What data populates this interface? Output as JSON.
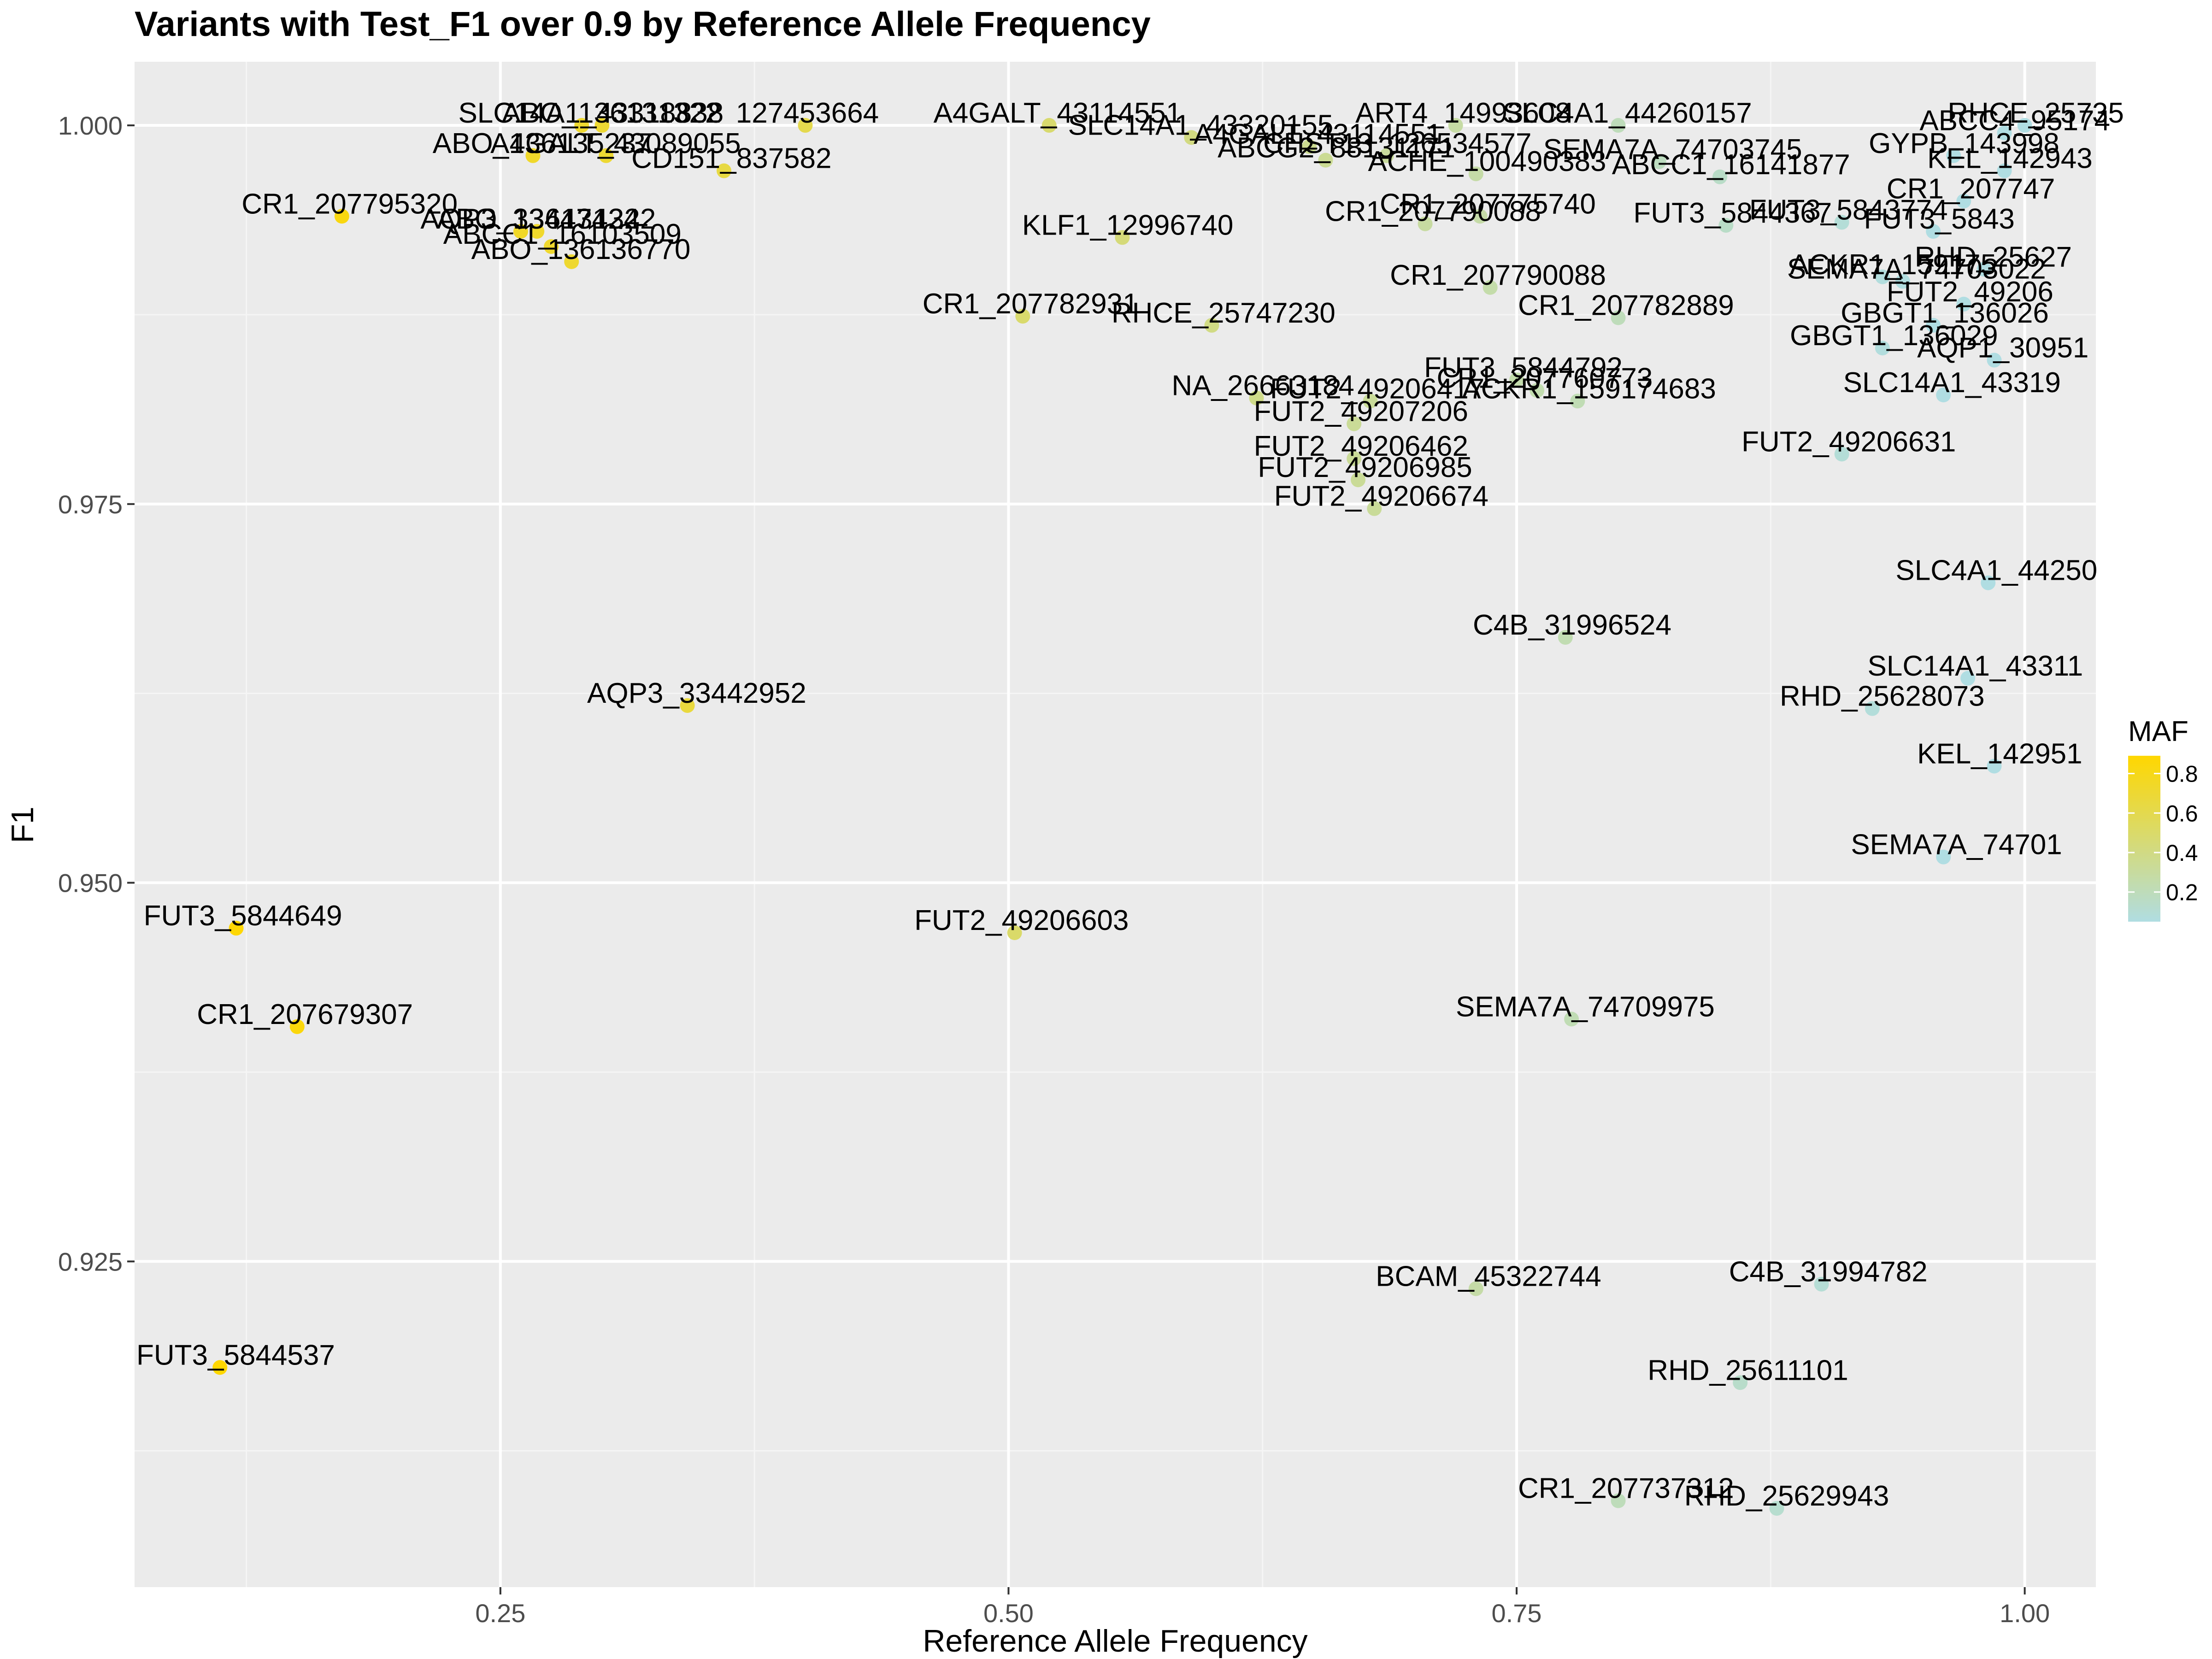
{
  "chart_data": {
    "type": "scatter",
    "title": "Variants with Test_F1 over 0.9 by Reference Allele Frequency",
    "xlabel": "Reference Allele Frequency",
    "ylabel": "F1",
    "xlim": [
      0.07,
      1.035
    ],
    "ylim": [
      0.9035,
      1.0042
    ],
    "x_ticks": [
      {
        "value": 0.25,
        "label": "0.25"
      },
      {
        "value": 0.5,
        "label": "0.50"
      },
      {
        "value": 0.75,
        "label": "0.75"
      },
      {
        "value": 1.0,
        "label": "1.00"
      }
    ],
    "y_ticks": [
      {
        "value": 0.925,
        "label": "0.925"
      },
      {
        "value": 0.95,
        "label": "0.950"
      },
      {
        "value": 0.975,
        "label": "0.975"
      },
      {
        "value": 1.0,
        "label": "1.000"
      }
    ],
    "grid": true,
    "legend": {
      "title": "MAF",
      "position": "right",
      "ticks": [
        {
          "value": 0.2,
          "label": "0.2"
        },
        {
          "value": 0.4,
          "label": "0.4"
        },
        {
          "value": 0.6,
          "label": "0.6"
        },
        {
          "value": 0.8,
          "label": "0.8"
        }
      ],
      "range": [
        0.05,
        0.89
      ],
      "low_color": "#b0dde2",
      "high_color": "#ffd700"
    },
    "points": [
      {
        "label": "SLC14A1_43318838",
        "x": 0.29,
        "y": 1.0,
        "maf": 0.71
      },
      {
        "label": "ABO_136131322",
        "x": 0.3,
        "y": 1.0,
        "maf": 0.7
      },
      {
        "label": "127453664",
        "x": 0.4,
        "y": 1.0,
        "maf": 0.6
      },
      {
        "label": "A4GALT_43114551",
        "x": 0.52,
        "y": 1.0,
        "maf": 0.48
      },
      {
        "label": "ABO_136135237",
        "x": 0.266,
        "y": 0.998,
        "maf": 0.73
      },
      {
        "label": "A4GALT_43089055",
        "x": 0.302,
        "y": 0.998,
        "maf": 0.7
      },
      {
        "label": "CD151_837582",
        "x": 0.36,
        "y": 0.997,
        "maf": 0.64
      },
      {
        "label": "CR1_207795320",
        "x": 0.172,
        "y": 0.994,
        "maf": 0.83
      },
      {
        "label": "AQP3_33447424",
        "x": 0.26,
        "y": 0.993,
        "maf": 0.74
      },
      {
        "label": "ABO_136131322",
        "x": 0.268,
        "y": 0.993,
        "maf": 0.73
      },
      {
        "label": "ABCC1_16103509",
        "x": 0.275,
        "y": 0.992,
        "maf": 0.72
      },
      {
        "label": "ABO_136136770",
        "x": 0.285,
        "y": 0.991,
        "maf": 0.71
      },
      {
        "label": "AQP3_33442952",
        "x": 0.342,
        "y": 0.9617,
        "maf": 0.66
      },
      {
        "label": "FUT3_5844649",
        "x": 0.12,
        "y": 0.947,
        "maf": 0.88
      },
      {
        "label": "CR1_207679307",
        "x": 0.15,
        "y": 0.9405,
        "maf": 0.85
      },
      {
        "label": "FUT3_5844537",
        "x": 0.112,
        "y": 0.918,
        "maf": 0.89
      },
      {
        "label": "FUT2_49206603",
        "x": 0.503,
        "y": 0.9467,
        "maf": 0.5
      },
      {
        "label": "KLF1_12996740",
        "x": 0.556,
        "y": 0.9926,
        "maf": 0.44
      },
      {
        "label": "CR1_207782931",
        "x": 0.507,
        "y": 0.9874,
        "maf": 0.49
      },
      {
        "label": "RHCE_25747230",
        "x": 0.6,
        "y": 0.9868,
        "maf": 0.4
      },
      {
        "label": "SLC14A1_43320155",
        "x": 0.59,
        "y": 0.9992,
        "maf": 0.41
      },
      {
        "label": "A4GALT_43114551",
        "x": 0.648,
        "y": 0.9986,
        "maf": 0.35
      },
      {
        "label": "ABCG2_88131171",
        "x": 0.656,
        "y": 0.9977,
        "maf": 0.34
      },
      {
        "label": "CHST13_126534577",
        "x": 0.686,
        "y": 0.998,
        "maf": 0.31
      },
      {
        "label": "ART4_14993608",
        "x": 0.72,
        "y": 1.0,
        "maf": 0.28
      },
      {
        "label": "SLC4A1_44260157",
        "x": 0.8,
        "y": 1.0,
        "maf": 0.2
      },
      {
        "label": "ACHE_100490383",
        "x": 0.73,
        "y": 0.9968,
        "maf": 0.27
      },
      {
        "label": "SEMA7A_74703745",
        "x": 0.82,
        "y": 0.9976,
        "maf": 0.18
      },
      {
        "label": "ABCC1_16141877",
        "x": 0.85,
        "y": 0.9966,
        "maf": 0.15
      },
      {
        "label": "CR1_207790088",
        "x": 0.705,
        "y": 0.9935,
        "maf": 0.29
      },
      {
        "label": "CR1_207775740",
        "x": 0.732,
        "y": 0.994,
        "maf": 0.27
      },
      {
        "label": "FUT3_5844367",
        "x": 0.853,
        "y": 0.9934,
        "maf": 0.15
      },
      {
        "label": "FUT3_5843774",
        "x": 0.91,
        "y": 0.9936,
        "maf": 0.09
      },
      {
        "label": "CR1_207790088",
        "x": 0.737,
        "y": 0.9893,
        "maf": 0.26
      },
      {
        "label": "SEMA7A_74703022",
        "x": 0.94,
        "y": 0.9897,
        "maf": 0.06
      },
      {
        "label": "CR1_207782889",
        "x": 0.8,
        "y": 0.9873,
        "maf": 0.2
      },
      {
        "label": "FUT3_5844792",
        "x": 0.75,
        "y": 0.9832,
        "maf": 0.25
      },
      {
        "label": "CR1_207760773",
        "x": 0.76,
        "y": 0.9825,
        "maf": 0.24
      },
      {
        "label": "ACKR1_159174683",
        "x": 0.78,
        "y": 0.9818,
        "maf": 0.22
      },
      {
        "label": "NA_26663184",
        "x": 0.622,
        "y": 0.982,
        "maf": 0.38
      },
      {
        "label": "FUT2_49206417",
        "x": 0.678,
        "y": 0.9818,
        "maf": 0.32
      },
      {
        "label": "FUT2_49207206",
        "x": 0.67,
        "y": 0.9803,
        "maf": 0.33
      },
      {
        "label": "FUT2_49206462",
        "x": 0.67,
        "y": 0.978,
        "maf": 0.33
      },
      {
        "label": "FUT2_49206985",
        "x": 0.672,
        "y": 0.9766,
        "maf": 0.33
      },
      {
        "label": "FUT2_49206674",
        "x": 0.68,
        "y": 0.9747,
        "maf": 0.32
      },
      {
        "label": "C4B_31996524",
        "x": 0.774,
        "y": 0.9662,
        "maf": 0.23
      },
      {
        "label": "SEMA7A_74709975",
        "x": 0.777,
        "y": 0.941,
        "maf": 0.22
      },
      {
        "label": "BCAM_45322744",
        "x": 0.73,
        "y": 0.9232,
        "maf": 0.27
      },
      {
        "label": "C4B_31994782",
        "x": 0.9,
        "y": 0.9235,
        "maf": 0.1
      },
      {
        "label": "RHD_25611101",
        "x": 0.86,
        "y": 0.917,
        "maf": 0.14
      },
      {
        "label": "CR1_207737312",
        "x": 0.8,
        "y": 0.9092,
        "maf": 0.2
      },
      {
        "label": "RHD_25629943",
        "x": 0.878,
        "y": 0.9087,
        "maf": 0.12
      },
      {
        "label": "RHD_25628073",
        "x": 0.925,
        "y": 0.9615,
        "maf": 0.08
      },
      {
        "label": "FUT2_49206631",
        "x": 0.91,
        "y": 0.9783,
        "maf": 0.09
      },
      {
        "label": "GBGT1_136029",
        "x": 0.93,
        "y": 0.9853,
        "maf": 0.07
      },
      {
        "label": "GBGT1_136026",
        "x": 0.955,
        "y": 0.9868,
        "maf": 0.05
      },
      {
        "label": "SLC14A1_43319",
        "x": 0.96,
        "y": 0.9822,
        "maf": 0.05
      },
      {
        "label": "AQP1_30951",
        "x": 0.985,
        "y": 0.9845,
        "maf": 0.05
      },
      {
        "label": "FUT2_49206",
        "x": 0.97,
        "y": 0.9882,
        "maf": 0.05
      },
      {
        "label": "RHD_25627",
        "x": 0.98,
        "y": 0.9905,
        "maf": 0.05
      },
      {
        "label": "ACKR1_159175",
        "x": 0.93,
        "y": 0.99,
        "maf": 0.07
      },
      {
        "label": "SLC4A1_44250",
        "x": 0.982,
        "y": 0.9698,
        "maf": 0.05
      },
      {
        "label": "SLC14A1_43311",
        "x": 0.972,
        "y": 0.9635,
        "maf": 0.05
      },
      {
        "label": "KEL_142951",
        "x": 0.985,
        "y": 0.9577,
        "maf": 0.05
      },
      {
        "label": "SEMA7A_74701",
        "x": 0.96,
        "y": 0.9517,
        "maf": 0.05
      },
      {
        "label": "FUT3_5843",
        "x": 0.955,
        "y": 0.993,
        "maf": 0.05
      },
      {
        "label": "CR1_207747",
        "x": 0.97,
        "y": 0.995,
        "maf": 0.05
      },
      {
        "label": "ABCC4_95174",
        "x": 0.99,
        "y": 0.9995,
        "maf": 0.05
      },
      {
        "label": "RHCE_25735",
        "x": 1.0,
        "y": 1.0,
        "maf": 0.05
      },
      {
        "label": "GYPB_143998",
        "x": 0.965,
        "y": 0.998,
        "maf": 0.05
      },
      {
        "label": "KEL_142943",
        "x": 0.99,
        "y": 0.997,
        "maf": 0.05
      }
    ]
  }
}
